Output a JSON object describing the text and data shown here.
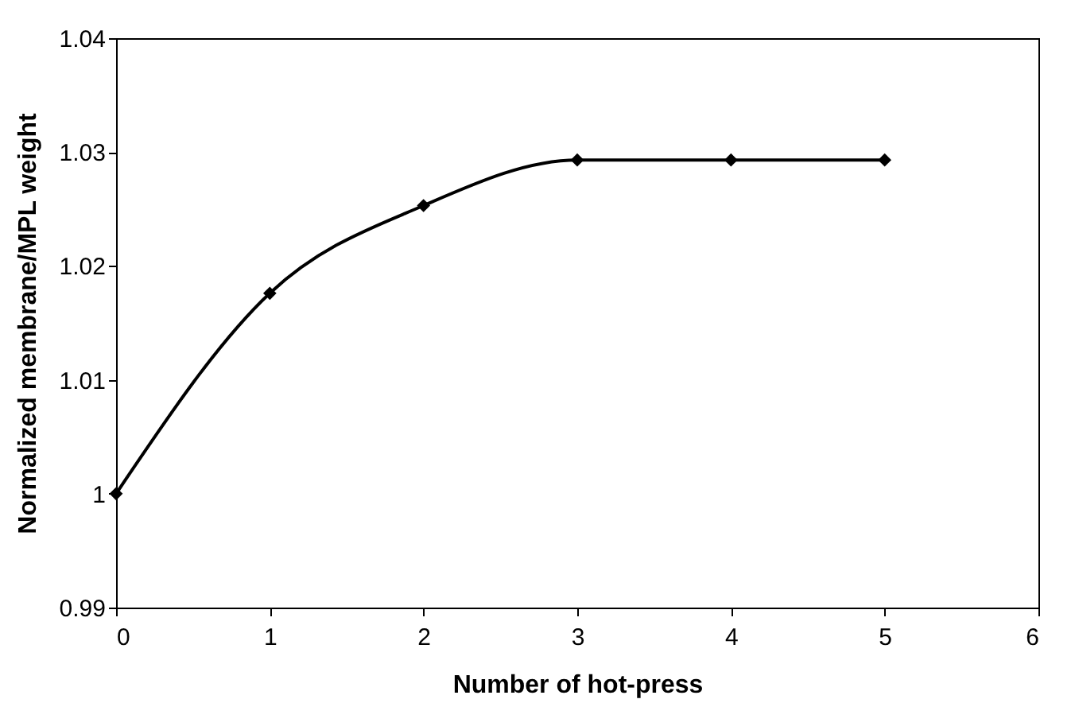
{
  "chart_data": {
    "type": "line",
    "xlabel": "Number of hot-press",
    "ylabel": "Normalized membrane/MPL weight",
    "x": [
      0,
      1,
      2,
      3,
      4,
      5
    ],
    "series": [
      {
        "color": "#000000",
        "values": [
          1.0,
          1.0176,
          1.0253,
          1.0293,
          1.0293,
          1.0293
        ]
      }
    ],
    "xlim": [
      0,
      6
    ],
    "xticks": [
      0,
      1,
      2,
      3,
      4,
      5,
      6
    ],
    "ylim": [
      0.99,
      1.04
    ],
    "yticks": [
      0.99,
      1,
      1.01,
      1.02,
      1.03,
      1.04
    ],
    "grid": false,
    "legend": false,
    "marker": "diamond",
    "line_style": "solid"
  }
}
